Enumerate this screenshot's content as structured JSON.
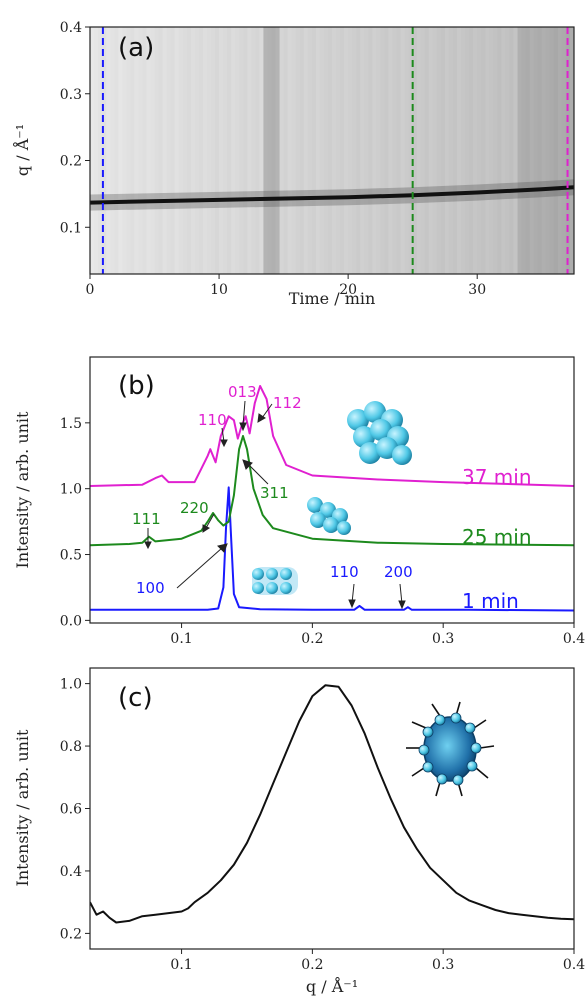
{
  "colors": {
    "blue": "#1a1aff",
    "green": "#1d8a1d",
    "magenta": "#e020d0",
    "black": "#111111"
  },
  "chart_data": [
    {
      "type": "heatmap",
      "panel_label": "(a)",
      "xlabel": "Time / min",
      "ylabel": "q / Å⁻¹",
      "xlim": [
        0,
        37.5
      ],
      "ylim": [
        0.03,
        0.4
      ],
      "xticks": [
        0,
        10,
        20,
        30
      ],
      "yticks": [
        0.1,
        0.2,
        0.3,
        0.4
      ],
      "ridge": {
        "x": [
          0,
          10,
          20,
          25,
          30,
          35,
          37.5
        ],
        "y": [
          0.137,
          0.141,
          0.145,
          0.148,
          0.152,
          0.157,
          0.16
        ]
      },
      "vertical_markers": [
        {
          "x": 1,
          "color": "#1a1aff"
        },
        {
          "x": 25,
          "color": "#1d8a1d"
        },
        {
          "x": 37,
          "color": "#e020d0"
        }
      ]
    },
    {
      "type": "line",
      "panel_label": "(b)",
      "xlabel": "",
      "ylabel": "Intensity / arb. unit",
      "xlim": [
        0.03,
        0.4
      ],
      "ylim": [
        -0.02,
        2.0
      ],
      "xticks": [
        0.1,
        0.2,
        0.3,
        0.4
      ],
      "yticks": [
        0.0,
        0.5,
        1.0,
        1.5
      ],
      "series": [
        {
          "name": "1 min",
          "color": "#1a1aff",
          "points": [
            [
              0.03,
              0.08
            ],
            [
              0.08,
              0.08
            ],
            [
              0.12,
              0.08
            ],
            [
              0.128,
              0.09
            ],
            [
              0.132,
              0.25
            ],
            [
              0.134,
              0.7
            ],
            [
              0.136,
              1.01
            ],
            [
              0.138,
              0.6
            ],
            [
              0.14,
              0.2
            ],
            [
              0.144,
              0.1
            ],
            [
              0.16,
              0.085
            ],
            [
              0.2,
              0.08
            ],
            [
              0.232,
              0.08
            ],
            [
              0.236,
              0.11
            ],
            [
              0.24,
              0.08
            ],
            [
              0.27,
              0.08
            ],
            [
              0.273,
              0.1
            ],
            [
              0.276,
              0.08
            ],
            [
              0.32,
              0.08
            ],
            [
              0.4,
              0.075
            ]
          ]
        },
        {
          "name": "25 min",
          "color": "#1d8a1d",
          "points": [
            [
              0.03,
              0.57
            ],
            [
              0.06,
              0.58
            ],
            [
              0.07,
              0.59
            ],
            [
              0.075,
              0.635
            ],
            [
              0.08,
              0.6
            ],
            [
              0.1,
              0.62
            ],
            [
              0.115,
              0.68
            ],
            [
              0.12,
              0.75
            ],
            [
              0.124,
              0.815
            ],
            [
              0.128,
              0.76
            ],
            [
              0.132,
              0.72
            ],
            [
              0.136,
              0.75
            ],
            [
              0.14,
              0.95
            ],
            [
              0.144,
              1.3
            ],
            [
              0.147,
              1.4
            ],
            [
              0.15,
              1.3
            ],
            [
              0.155,
              1.0
            ],
            [
              0.162,
              0.8
            ],
            [
              0.17,
              0.7
            ],
            [
              0.2,
              0.62
            ],
            [
              0.25,
              0.59
            ],
            [
              0.3,
              0.58
            ],
            [
              0.4,
              0.57
            ]
          ]
        },
        {
          "name": "37 min",
          "color": "#e020d0",
          "points": [
            [
              0.03,
              1.02
            ],
            [
              0.07,
              1.03
            ],
            [
              0.08,
              1.08
            ],
            [
              0.085,
              1.1
            ],
            [
              0.09,
              1.05
            ],
            [
              0.11,
              1.05
            ],
            [
              0.115,
              1.15
            ],
            [
              0.12,
              1.25
            ],
            [
              0.122,
              1.3
            ],
            [
              0.126,
              1.2
            ],
            [
              0.13,
              1.4
            ],
            [
              0.136,
              1.55
            ],
            [
              0.14,
              1.52
            ],
            [
              0.143,
              1.38
            ],
            [
              0.146,
              1.48
            ],
            [
              0.149,
              1.55
            ],
            [
              0.152,
              1.42
            ],
            [
              0.156,
              1.65
            ],
            [
              0.16,
              1.78
            ],
            [
              0.165,
              1.68
            ],
            [
              0.17,
              1.4
            ],
            [
              0.18,
              1.18
            ],
            [
              0.2,
              1.1
            ],
            [
              0.25,
              1.07
            ],
            [
              0.3,
              1.05
            ],
            [
              0.4,
              1.02
            ]
          ]
        }
      ],
      "labels": {
        "series_names": [
          {
            "text": "37 min",
            "color": "#e020d0"
          },
          {
            "text": "25 min",
            "color": "#1d8a1d"
          },
          {
            "text": "1 min",
            "color": "#1a1aff"
          }
        ],
        "peaks": [
          {
            "text": "110",
            "color": "#e020d0"
          },
          {
            "text": "013",
            "color": "#e020d0"
          },
          {
            "text": "112",
            "color": "#e020d0"
          },
          {
            "text": "311",
            "color": "#1d8a1d"
          },
          {
            "text": "111",
            "color": "#1d8a1d"
          },
          {
            "text": "220",
            "color": "#1d8a1d"
          },
          {
            "text": "100",
            "color": "#1a1aff"
          },
          {
            "text": "110",
            "color": "#1a1aff"
          },
          {
            "text": "200",
            "color": "#1a1aff"
          }
        ]
      }
    },
    {
      "type": "line",
      "panel_label": "(c)",
      "xlabel": "q / Å⁻¹",
      "ylabel": "Intensity / arb. unit",
      "xlim": [
        0.03,
        0.4
      ],
      "ylim": [
        0.15,
        1.05
      ],
      "xticks": [
        0.1,
        0.2,
        0.3,
        0.4
      ],
      "yticks": [
        0.2,
        0.4,
        0.6,
        0.8,
        1.0
      ],
      "series": [
        {
          "name": "",
          "color": "#111111",
          "points": [
            [
              0.03,
              0.3
            ],
            [
              0.035,
              0.26
            ],
            [
              0.04,
              0.27
            ],
            [
              0.045,
              0.25
            ],
            [
              0.05,
              0.235
            ],
            [
              0.06,
              0.24
            ],
            [
              0.07,
              0.255
            ],
            [
              0.08,
              0.26
            ],
            [
              0.09,
              0.265
            ],
            [
              0.1,
              0.27
            ],
            [
              0.105,
              0.28
            ],
            [
              0.11,
              0.3
            ],
            [
              0.12,
              0.33
            ],
            [
              0.13,
              0.37
            ],
            [
              0.14,
              0.42
            ],
            [
              0.15,
              0.49
            ],
            [
              0.16,
              0.58
            ],
            [
              0.17,
              0.68
            ],
            [
              0.18,
              0.78
            ],
            [
              0.19,
              0.88
            ],
            [
              0.2,
              0.96
            ],
            [
              0.21,
              0.995
            ],
            [
              0.22,
              0.99
            ],
            [
              0.23,
              0.93
            ],
            [
              0.24,
              0.84
            ],
            [
              0.25,
              0.73
            ],
            [
              0.26,
              0.63
            ],
            [
              0.27,
              0.54
            ],
            [
              0.28,
              0.47
            ],
            [
              0.29,
              0.41
            ],
            [
              0.3,
              0.37
            ],
            [
              0.31,
              0.33
            ],
            [
              0.32,
              0.305
            ],
            [
              0.33,
              0.29
            ],
            [
              0.34,
              0.275
            ],
            [
              0.35,
              0.265
            ],
            [
              0.36,
              0.26
            ],
            [
              0.37,
              0.255
            ],
            [
              0.38,
              0.25
            ],
            [
              0.39,
              0.247
            ],
            [
              0.4,
              0.245
            ]
          ]
        }
      ]
    }
  ]
}
